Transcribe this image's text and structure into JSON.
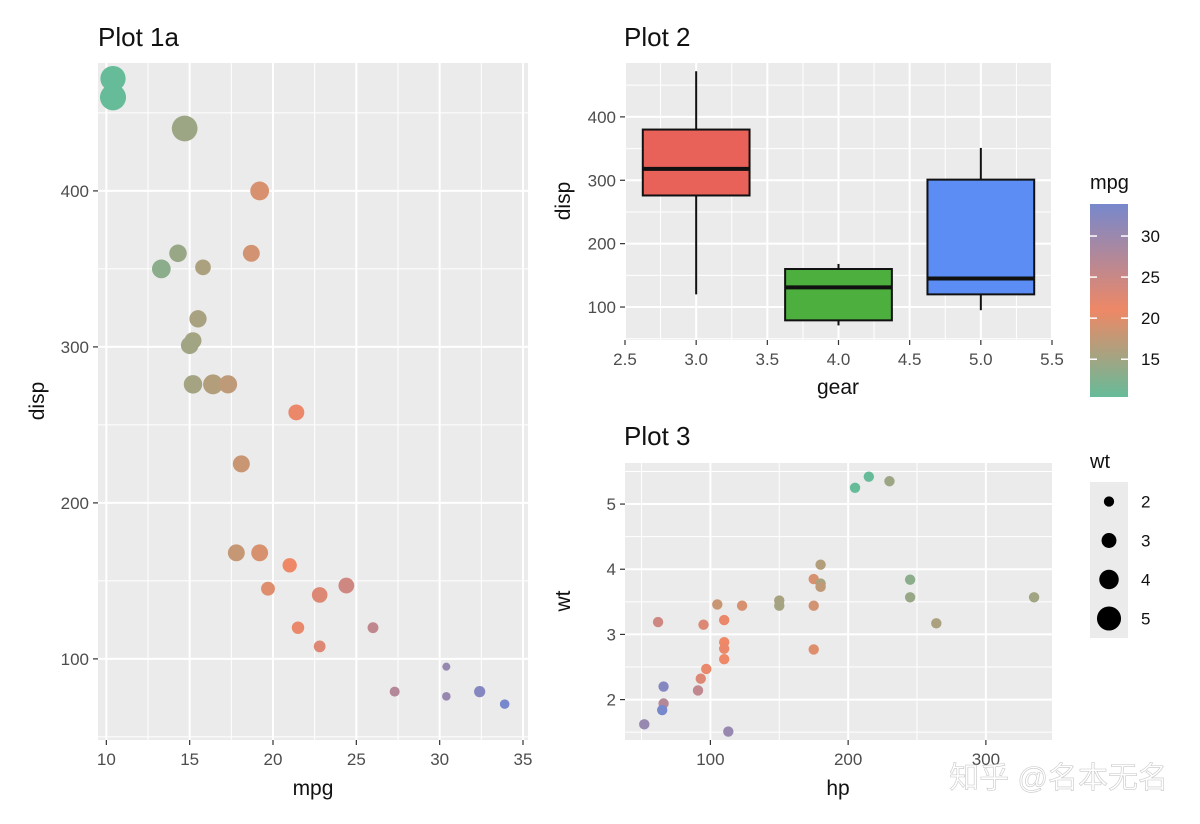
{
  "colors": {
    "panel_bg": "#EBEBEB",
    "grid": "#FFFFFF",
    "mpg_low": "#66BB99",
    "mpg_mid": "#EE8866",
    "mpg_high": "#7788CC"
  },
  "legend_mpg": {
    "title": "mpg",
    "ticks": [
      "15",
      "20",
      "25",
      "30"
    ],
    "min": 10.4,
    "max": 33.9
  },
  "legend_wt": {
    "title": "wt",
    "labels": [
      "2",
      "3",
      "4",
      "5"
    ]
  },
  "watermark": "知乎 @名本无名",
  "chart_data": [
    {
      "id": "plot1a",
      "type": "scatter",
      "title": "Plot 1a",
      "xlabel": "mpg",
      "ylabel": "disp",
      "xlim": [
        9.5,
        35.3
      ],
      "ylim": [
        48,
        482
      ],
      "xticks": [
        10,
        15,
        20,
        25,
        30,
        35
      ],
      "yticks": [
        100,
        200,
        300,
        400
      ],
      "points": [
        {
          "x": 10.4,
          "y": 472,
          "wt": 5.25
        },
        {
          "x": 10.4,
          "y": 460,
          "wt": 5.42
        },
        {
          "x": 14.7,
          "y": 440,
          "wt": 5.35
        },
        {
          "x": 19.2,
          "y": 400,
          "wt": 3.85
        },
        {
          "x": 14.3,
          "y": 360,
          "wt": 3.57
        },
        {
          "x": 18.7,
          "y": 360,
          "wt": 3.44
        },
        {
          "x": 13.3,
          "y": 350,
          "wt": 3.84
        },
        {
          "x": 15.8,
          "y": 351,
          "wt": 3.17
        },
        {
          "x": 15.5,
          "y": 318,
          "wt": 3.52
        },
        {
          "x": 15.2,
          "y": 304,
          "wt": 3.44
        },
        {
          "x": 15.0,
          "y": 301,
          "wt": 3.57
        },
        {
          "x": 15.2,
          "y": 276,
          "wt": 3.78
        },
        {
          "x": 16.4,
          "y": 276,
          "wt": 4.07
        },
        {
          "x": 17.3,
          "y": 276,
          "wt": 3.73
        },
        {
          "x": 21.4,
          "y": 258,
          "wt": 3.22
        },
        {
          "x": 18.1,
          "y": 225,
          "wt": 3.46
        },
        {
          "x": 17.8,
          "y": 168,
          "wt": 3.44
        },
        {
          "x": 19.2,
          "y": 168,
          "wt": 3.44
        },
        {
          "x": 21.0,
          "y": 160,
          "wt": 2.62
        },
        {
          "x": 21.0,
          "y": 160,
          "wt": 2.88
        },
        {
          "x": 24.4,
          "y": 147,
          "wt": 3.19
        },
        {
          "x": 19.7,
          "y": 145,
          "wt": 2.77
        },
        {
          "x": 22.8,
          "y": 141,
          "wt": 3.15
        },
        {
          "x": 21.5,
          "y": 120,
          "wt": 2.47
        },
        {
          "x": 26.0,
          "y": 120,
          "wt": 2.14
        },
        {
          "x": 22.8,
          "y": 108,
          "wt": 2.32
        },
        {
          "x": 30.4,
          "y": 95,
          "wt": 1.51
        },
        {
          "x": 27.3,
          "y": 79,
          "wt": 1.94
        },
        {
          "x": 32.4,
          "y": 79,
          "wt": 2.2
        },
        {
          "x": 30.4,
          "y": 76,
          "wt": 1.62
        },
        {
          "x": 33.9,
          "y": 71,
          "wt": 1.84
        }
      ]
    },
    {
      "id": "plot2",
      "type": "box",
      "title": "Plot 2",
      "xlabel": "gear",
      "ylabel": "disp",
      "xlim": [
        2.5,
        5.5
      ],
      "ylim": [
        48,
        485
      ],
      "xticks": [
        "2.5",
        "3.0",
        "3.5",
        "4.0",
        "4.5",
        "5.0",
        "5.5"
      ],
      "yticks": [
        100,
        200,
        300,
        400
      ],
      "boxes": [
        {
          "gear": 3,
          "color": "#E8625A",
          "min": 120,
          "q1": 276,
          "median": 318,
          "q3": 380,
          "max": 472
        },
        {
          "gear": 4,
          "color": "#4DAF3E",
          "min": 71,
          "q1": 79,
          "median": 131,
          "q3": 160,
          "max": 168
        },
        {
          "gear": 5,
          "color": "#5B8DF5",
          "min": 95,
          "q1": 120,
          "median": 145,
          "q3": 301,
          "max": 351
        }
      ]
    },
    {
      "id": "plot3",
      "type": "scatter",
      "title": "Plot 3",
      "xlabel": "hp",
      "ylabel": "wt",
      "xlim": [
        38,
        348
      ],
      "ylim": [
        1.38,
        5.63
      ],
      "xticks": [
        100,
        200,
        300
      ],
      "yticks": [
        2,
        3,
        4,
        5
      ],
      "points": [
        {
          "x": 205,
          "y": 5.25,
          "mpg": 10.4
        },
        {
          "x": 215,
          "y": 5.42,
          "mpg": 10.4
        },
        {
          "x": 230,
          "y": 5.35,
          "mpg": 14.7
        },
        {
          "x": 180,
          "y": 4.07,
          "mpg": 16.4
        },
        {
          "x": 175,
          "y": 3.85,
          "mpg": 19.2
        },
        {
          "x": 180,
          "y": 3.78,
          "mpg": 15.2
        },
        {
          "x": 180,
          "y": 3.73,
          "mpg": 17.3
        },
        {
          "x": 245,
          "y": 3.84,
          "mpg": 13.3
        },
        {
          "x": 245,
          "y": 3.57,
          "mpg": 14.3
        },
        {
          "x": 335,
          "y": 3.57,
          "mpg": 15.0
        },
        {
          "x": 264,
          "y": 3.17,
          "mpg": 15.8
        },
        {
          "x": 150,
          "y": 3.52,
          "mpg": 15.5
        },
        {
          "x": 150,
          "y": 3.44,
          "mpg": 15.2
        },
        {
          "x": 175,
          "y": 3.44,
          "mpg": 18.7
        },
        {
          "x": 105,
          "y": 3.46,
          "mpg": 18.1
        },
        {
          "x": 123,
          "y": 3.44,
          "mpg": 19.2
        },
        {
          "x": 110,
          "y": 3.22,
          "mpg": 21.4
        },
        {
          "x": 62,
          "y": 3.19,
          "mpg": 24.4
        },
        {
          "x": 95,
          "y": 3.15,
          "mpg": 22.8
        },
        {
          "x": 110,
          "y": 2.88,
          "mpg": 21.0
        },
        {
          "x": 110,
          "y": 2.78,
          "mpg": 21.3
        },
        {
          "x": 175,
          "y": 2.77,
          "mpg": 19.7
        },
        {
          "x": 110,
          "y": 2.62,
          "mpg": 21.0
        },
        {
          "x": 97,
          "y": 2.47,
          "mpg": 21.5
        },
        {
          "x": 93,
          "y": 2.32,
          "mpg": 22.8
        },
        {
          "x": 66,
          "y": 2.2,
          "mpg": 32.4
        },
        {
          "x": 91,
          "y": 2.14,
          "mpg": 26.0
        },
        {
          "x": 66,
          "y": 1.94,
          "mpg": 27.3
        },
        {
          "x": 65,
          "y": 1.84,
          "mpg": 33.9
        },
        {
          "x": 52,
          "y": 1.62,
          "mpg": 30.4
        },
        {
          "x": 113,
          "y": 1.51,
          "mpg": 30.4
        }
      ]
    }
  ]
}
